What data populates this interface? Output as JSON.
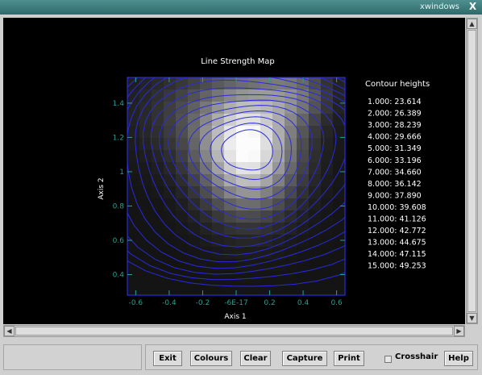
{
  "window": {
    "title": "xwindows",
    "close_glyph": "X"
  },
  "plot": {
    "title": "Line Strength Map",
    "xlabel": "Axis 1",
    "ylabel": "Axis 2",
    "x_ticks": [
      "-0.6",
      "-0.4",
      "-0.2",
      "-6E-17",
      "0.2",
      "0.4",
      "0.6"
    ],
    "y_ticks": [
      "0.4",
      "0.6",
      "0.8",
      "1",
      "1.2",
      "1.4"
    ],
    "legend_title": "Contour heights",
    "contours": [
      "1.000: 23.614",
      "2.000: 26.389",
      "3.000: 28.239",
      "4.000: 29.666",
      "5.000: 31.349",
      "6.000: 33.196",
      "7.000: 34.660",
      "8.000: 36.142",
      "9.000: 37.890",
      "10.000: 39.608",
      "11.000: 41.126",
      "12.000: 42.772",
      "13.000: 44.675",
      "14.000: 47.115",
      "15.000: 49.253"
    ],
    "colors": {
      "contour": "#2a2adf",
      "axis": "#2a9f8f",
      "text": "#ffffff",
      "background": "#000000"
    }
  },
  "chart_data": {
    "type": "heatmap",
    "title": "Line Strength Map",
    "xlabel": "Axis 1",
    "ylabel": "Axis 2",
    "xlim": [
      -0.65,
      0.65
    ],
    "ylim": [
      0.28,
      1.55
    ],
    "x_tick_labels": [
      "-0.6",
      "-0.4",
      "-0.2",
      "-6E-17",
      "0.2",
      "0.4",
      "0.6"
    ],
    "y_tick_labels": [
      "0.4",
      "0.6",
      "0.8",
      "1",
      "1.2",
      "1.4"
    ],
    "peak": {
      "x": 0.07,
      "y": 1.14
    },
    "contour_levels": [
      1,
      2,
      3,
      4,
      5,
      6,
      7,
      8,
      9,
      10,
      11,
      12,
      13,
      14,
      15
    ],
    "contour_heights": [
      23.614,
      26.389,
      28.239,
      29.666,
      31.349,
      33.196,
      34.66,
      36.142,
      37.89,
      39.608,
      41.126,
      42.772,
      44.675,
      47.115,
      49.253
    ]
  },
  "buttons": {
    "exit": "Exit",
    "colours": "Colours",
    "clear": "Clear",
    "capture": "Capture",
    "print": "Print",
    "help": "Help"
  },
  "crosshair_label": "Crosshair",
  "icons": {
    "scroll_up": "▲",
    "scroll_down": "▼",
    "scroll_left": "◀",
    "scroll_right": "▶"
  }
}
